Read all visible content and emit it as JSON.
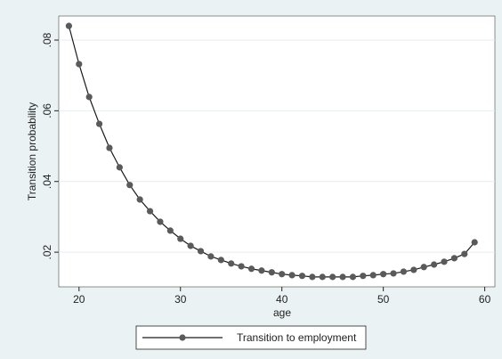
{
  "chart_data": {
    "type": "line",
    "x_label": "age",
    "y_label": "Transition probability",
    "x": [
      19,
      20,
      21,
      22,
      23,
      24,
      25,
      26,
      27,
      28,
      29,
      30,
      31,
      32,
      33,
      34,
      35,
      36,
      37,
      38,
      39,
      40,
      41,
      42,
      43,
      44,
      45,
      46,
      47,
      48,
      49,
      50,
      51,
      52,
      53,
      54,
      55,
      56,
      57,
      58,
      59
    ],
    "series": [
      {
        "name": "Transition to employment",
        "color": "#1a1a1a",
        "marker_color": "#5a5a5a",
        "values": [
          0.084,
          0.0732,
          0.0639,
          0.0563,
          0.0495,
          0.044,
          0.039,
          0.0349,
          0.0316,
          0.0286,
          0.0261,
          0.0238,
          0.0218,
          0.0203,
          0.0188,
          0.0178,
          0.0168,
          0.016,
          0.0153,
          0.0148,
          0.0143,
          0.0138,
          0.0135,
          0.0133,
          0.013,
          0.013,
          0.013,
          0.013,
          0.013,
          0.0133,
          0.0135,
          0.0138,
          0.014,
          0.0145,
          0.015,
          0.0158,
          0.0165,
          0.0173,
          0.0183,
          0.0195,
          0.0228
        ]
      }
    ],
    "xlim": [
      18,
      61
    ],
    "ylim": [
      0.0102,
      0.0868
    ],
    "xticks": [
      20,
      30,
      40,
      50,
      60
    ],
    "yticks": [
      {
        "value": 0.02,
        "label": ".02"
      },
      {
        "value": 0.04,
        "label": ".04"
      },
      {
        "value": 0.06,
        "label": ".06"
      },
      {
        "value": 0.08,
        "label": ".08"
      }
    ],
    "grid": true
  }
}
